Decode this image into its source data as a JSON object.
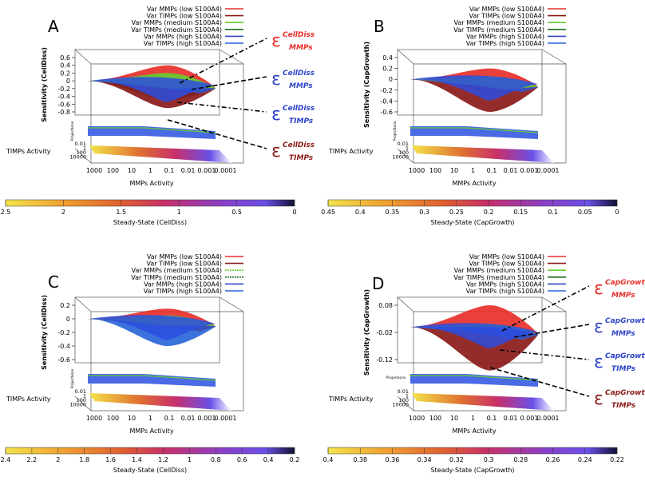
{
  "figure": "Four 3D sensitivity surface panels (A-D) with steady-state colour bars",
  "chart_data": [
    {
      "panel": "A",
      "type": "surface3d",
      "ylabel": "Sensitivity (CellDiss)",
      "xlabel": "MMPs Activity",
      "zlabel": "TIMPs Activity",
      "projections_label": "Projections",
      "yticks": [
        "0.6",
        "0.4",
        "0.2",
        "0",
        "-0.2",
        "-0.4",
        "-0.6",
        "-0.8"
      ],
      "xticks": [
        "1000",
        "100",
        "10",
        "1",
        "0.1",
        "0.01",
        "0.001",
        "0.0001"
      ],
      "zticks": [
        "0.01",
        "1",
        "100",
        "10000"
      ],
      "legend": [
        {
          "label": "Var MMPs (low S100A4)",
          "color": "#e8302a"
        },
        {
          "label": "Var TIMPs (low S100A4)",
          "color": "#8b1a1a"
        },
        {
          "label": "Var MMPs (medium S100A4)",
          "color": "#66cc33"
        },
        {
          "label": "Var TIMPs (medium S100A4)",
          "color": "#1f6b1f"
        },
        {
          "label": "Var MMPs (high S100A4)",
          "color": "#3346c9"
        },
        {
          "label": "Var TIMPs (high S100A4)",
          "color": "#2a66d9"
        }
      ],
      "series_peaks": [
        {
          "name": "Var MMPs (low S100A4)",
          "peak": 0.4
        },
        {
          "name": "Var MMPs (medium S100A4)",
          "peak": 0.2
        },
        {
          "name": "Var MMPs (high S100A4)",
          "peak": -0.2
        },
        {
          "name": "Var TIMPs (medium S100A4)",
          "peak": -0.5
        },
        {
          "name": "Var TIMPs (low S100A4)",
          "peak": -0.7
        }
      ],
      "annotations": [
        {
          "sup": "CellDiss",
          "sub": "MMPs",
          "color": "#e8302a"
        },
        {
          "sup": "CellDiss",
          "sub": "MMPs",
          "color": "#3346c9"
        },
        {
          "sup": "CellDiss",
          "sub": "TIMPs",
          "color": "#2a3fcc"
        },
        {
          "sup": "CellDiss",
          "sub": "TIMPs",
          "color": "#8b1a1a"
        }
      ],
      "colorbar": {
        "label": "Steady-State (CellDiss)",
        "ticks": [
          "2.5",
          "2",
          "1.5",
          "1",
          "0.5",
          "0"
        ]
      }
    },
    {
      "panel": "B",
      "type": "surface3d",
      "ylabel": "Sensitivity (CapGrowth)",
      "xlabel": "MMPs Activity",
      "zlabel": "TIMPs Activity",
      "projections_label": "Projections",
      "yticks": [
        "0.4",
        "0.2",
        "0",
        "-0.2",
        "-0.4",
        "-0.6"
      ],
      "xticks": [
        "1000",
        "100",
        "10",
        "1",
        "0.1",
        "0.01",
        "0.001",
        "0.0001"
      ],
      "zticks": [
        "0.01",
        "1",
        "100",
        "10000"
      ],
      "legend": [
        {
          "label": "Var MMPs (low S100A4)",
          "color": "#e8302a"
        },
        {
          "label": "Var TIMPs (low S100A4)",
          "color": "#8b1a1a"
        },
        {
          "label": "Var MMPs (medium S100A4)",
          "color": "#66cc33"
        },
        {
          "label": "Var TIMPs (medium S100A4)",
          "color": "#1f6b1f"
        },
        {
          "label": "Var MMPs (high S100A4)",
          "color": "#3346c9"
        },
        {
          "label": "Var TIMPs (high S100A4)",
          "color": "#2a66d9"
        }
      ],
      "series_peaks": [
        {
          "name": "Var MMPs (low S100A4)",
          "peak": 0.2
        },
        {
          "name": "Var MMPs (medium S100A4)",
          "peak": 0.05
        },
        {
          "name": "Var MMPs (high S100A4)",
          "peak": -0.2
        },
        {
          "name": "Var TIMPs (low S100A4)",
          "peak": -0.6
        }
      ],
      "annotations": [],
      "colorbar": {
        "label": "Steady-State (CapGrowth)",
        "ticks": [
          "0.45",
          "0.4",
          "0.35",
          "0.3",
          "0.25",
          "0.2",
          "0.15",
          "0.1",
          "0.05",
          "0"
        ]
      }
    },
    {
      "panel": "C",
      "type": "surface3d",
      "ylabel": "Sensitivity (CellDiss)",
      "xlabel": "MMPs Activity",
      "zlabel": "TIMPs Activity",
      "projections_label": "Projections",
      "yticks": [
        "0.2",
        "0",
        "-0.2",
        "-0.4",
        "-0.6"
      ],
      "xticks": [
        "1000",
        "100",
        "10",
        "1",
        "0.1",
        "0.01",
        "0.001",
        "0.0001"
      ],
      "zticks": [
        "0.01",
        "1",
        "100",
        "10000"
      ],
      "legend": [
        {
          "label": "Var MMPs (low S100A4)",
          "color": "#e8302a"
        },
        {
          "label": "Var TIMPs (low S100A4)",
          "color": "#8b1a1a"
        },
        {
          "label": "Var MMPs (medium S100A4)",
          "color": "#66cc33"
        },
        {
          "label": "Var TIMPs (medium S100A4)",
          "color": "#1f6b1f"
        },
        {
          "label": "Var MMPs (high S100A4)",
          "color": "#3346c9"
        },
        {
          "label": "Var TIMPs (high S100A4)",
          "color": "#2a66d9"
        }
      ],
      "series_peaks": [
        {
          "name": "Var MMPs (low S100A4)",
          "peak": 0.15
        },
        {
          "name": "Var MMPs (medium S100A4)",
          "peak": 0.05
        },
        {
          "name": "Var MMPs (high S100A4)",
          "peak": -0.1
        },
        {
          "name": "Var TIMPs (high S100A4)",
          "peak": -0.4
        }
      ],
      "annotations": [],
      "colorbar": {
        "label": "Steady-State (CellDiss)",
        "ticks": [
          "2.4",
          "2.2",
          "2",
          "1.8",
          "1.6",
          "1.4",
          "1.2",
          "1",
          "0.8",
          "0.6",
          "0.4",
          "0.2"
        ]
      }
    },
    {
      "panel": "D",
      "type": "surface3d",
      "ylabel": "Sensitivity (CapGrowth)",
      "xlabel": "MMPs Activity",
      "zlabel": "TIMPs Activity",
      "projections_label": "Projections",
      "yticks": [
        "0.08",
        "-0.02",
        "-0.12"
      ],
      "xticks": [
        "1000",
        "100",
        "10",
        "1",
        "0.1",
        "0.01",
        "0.001",
        "0.0001"
      ],
      "zticks": [
        "0.01",
        "1",
        "100",
        "10000"
      ],
      "legend": [
        {
          "label": "Var MMPs (low S100A4)",
          "color": "#e8302a"
        },
        {
          "label": "Var TIMPs (low S100A4)",
          "color": "#8b1a1a"
        },
        {
          "label": "Var MMPs (medium S100A4)",
          "color": "#66cc33"
        },
        {
          "label": "Var TIMPs (medium S100A4)",
          "color": "#1f6b1f"
        },
        {
          "label": "Var MMPs (high S100A4)",
          "color": "#3346c9"
        },
        {
          "label": "Var TIMPs (high S100A4)",
          "color": "#2a66d9"
        }
      ],
      "series_peaks": [
        {
          "name": "Var MMPs (low S100A4)",
          "peak": 0.08
        },
        {
          "name": "Var MMPs (medium S100A4)",
          "peak": 0.01
        },
        {
          "name": "Var MMPs (high S100A4)",
          "peak": 0.0
        },
        {
          "name": "Var TIMPs (low S100A4)",
          "peak": -0.16
        }
      ],
      "annotations": [
        {
          "sup": "CapGrowth",
          "sub": "MMPs",
          "color": "#e8302a"
        },
        {
          "sup": "CapGrowth",
          "sub": "MMPs",
          "color": "#3346c9"
        },
        {
          "sup": "CapGrowth",
          "sub": "TIMPs",
          "color": "#2a3fcc"
        },
        {
          "sup": "CapGrowth",
          "sub": "TIMPs",
          "color": "#8b1a1a"
        }
      ],
      "colorbar": {
        "label": "Steady-State (CapGrowth)",
        "ticks": [
          "0.4",
          "0.38",
          "0.36",
          "0.34",
          "0.32",
          "0.3",
          "0.28",
          "0.26",
          "0.24",
          "0.22"
        ]
      }
    }
  ],
  "colors": {
    "gradient": [
      "#f2e44a",
      "#f0a030",
      "#e06030",
      "#c8306a",
      "#8a40c8",
      "#6a50e8",
      "#101030"
    ],
    "axis": "#000000",
    "box": "#555555"
  },
  "epsilon_symbol": "ε"
}
